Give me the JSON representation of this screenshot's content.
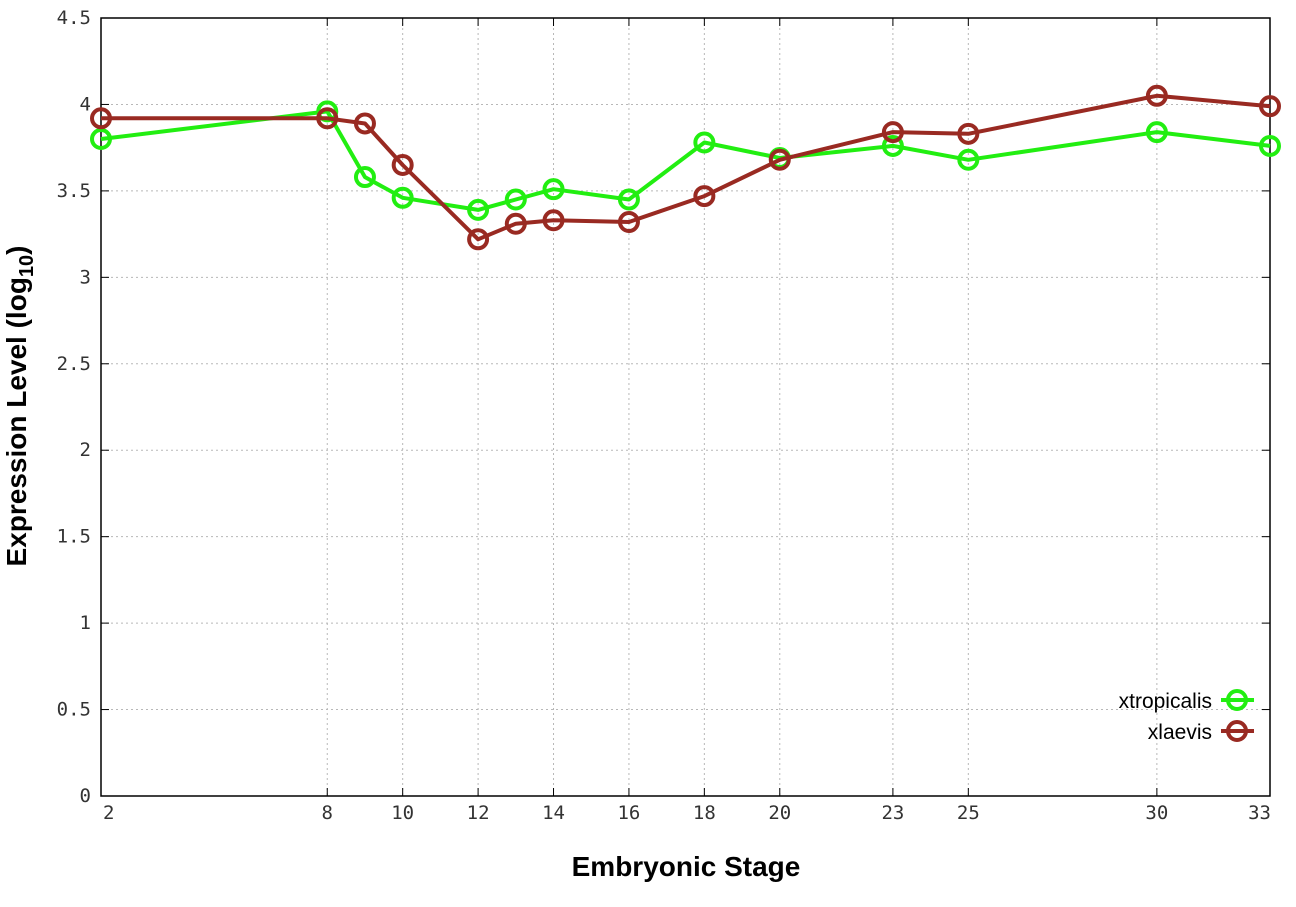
{
  "chart_data": {
    "type": "line",
    "xlabel": "Embryonic Stage",
    "ylabel": "Expression Level (log",
    "ylabel_sub": "10",
    "ylabel_close": ")",
    "x_ticks": [
      "2",
      "8",
      "10",
      "12",
      "14",
      "16",
      "18",
      "20",
      "23",
      "25",
      "30",
      "33"
    ],
    "x_tick_values": [
      2,
      8,
      10,
      12,
      14,
      16,
      18,
      20,
      23,
      25,
      30,
      33
    ],
    "y_ticks": [
      "0",
      "0.5",
      "1",
      "1.5",
      "2",
      "2.5",
      "3",
      "3.5",
      "4",
      "4.5"
    ],
    "y_tick_values": [
      0,
      0.5,
      1,
      1.5,
      2,
      2.5,
      3,
      3.5,
      4,
      4.5
    ],
    "xlim": [
      2,
      33
    ],
    "ylim": [
      0,
      4.5
    ],
    "grid": true,
    "legend_position": "bottom-right",
    "series": [
      {
        "name": "xtropicalis",
        "color": "#22ee11",
        "x": [
          2,
          8,
          9,
          10,
          12,
          13,
          14,
          16,
          18,
          20,
          23,
          25,
          30,
          33
        ],
        "y": [
          3.8,
          3.96,
          3.58,
          3.46,
          3.39,
          3.45,
          3.51,
          3.45,
          3.78,
          3.69,
          3.76,
          3.68,
          3.84,
          3.76
        ]
      },
      {
        "name": "xlaevis",
        "color": "#992a22",
        "x": [
          2,
          8,
          9,
          10,
          12,
          13,
          14,
          16,
          18,
          20,
          23,
          25,
          30,
          33
        ],
        "y": [
          3.92,
          3.92,
          3.89,
          3.65,
          3.22,
          3.31,
          3.33,
          3.32,
          3.47,
          3.68,
          3.84,
          3.83,
          4.05,
          3.99
        ]
      }
    ]
  }
}
